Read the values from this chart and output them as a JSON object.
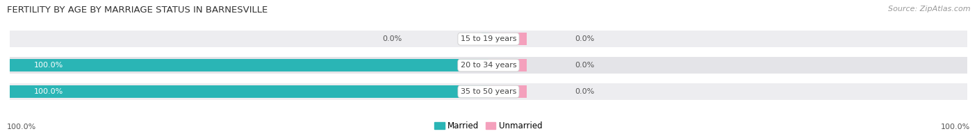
{
  "title": "FERTILITY BY AGE BY MARRIAGE STATUS IN BARNESVILLE",
  "source": "Source: ZipAtlas.com",
  "categories": [
    "15 to 19 years",
    "20 to 34 years",
    "35 to 50 years"
  ],
  "married_values": [
    0.0,
    100.0,
    100.0
  ],
  "unmarried_values": [
    0.0,
    0.0,
    0.0
  ],
  "married_color": "#2ab5b5",
  "unmarried_color": "#f4a0bc",
  "bar_bg_color": "#e4e4e8",
  "bar_bg_color2": "#ededf0",
  "label_married": "Married",
  "label_unmarried": "Unmarried",
  "title_fontsize": 9.5,
  "source_fontsize": 8,
  "bar_label_fontsize": 8,
  "category_fontsize": 8,
  "legend_fontsize": 8.5,
  "footer_label": "100.0%",
  "bar_height": 0.62,
  "row_order": [
    2,
    1,
    0
  ]
}
